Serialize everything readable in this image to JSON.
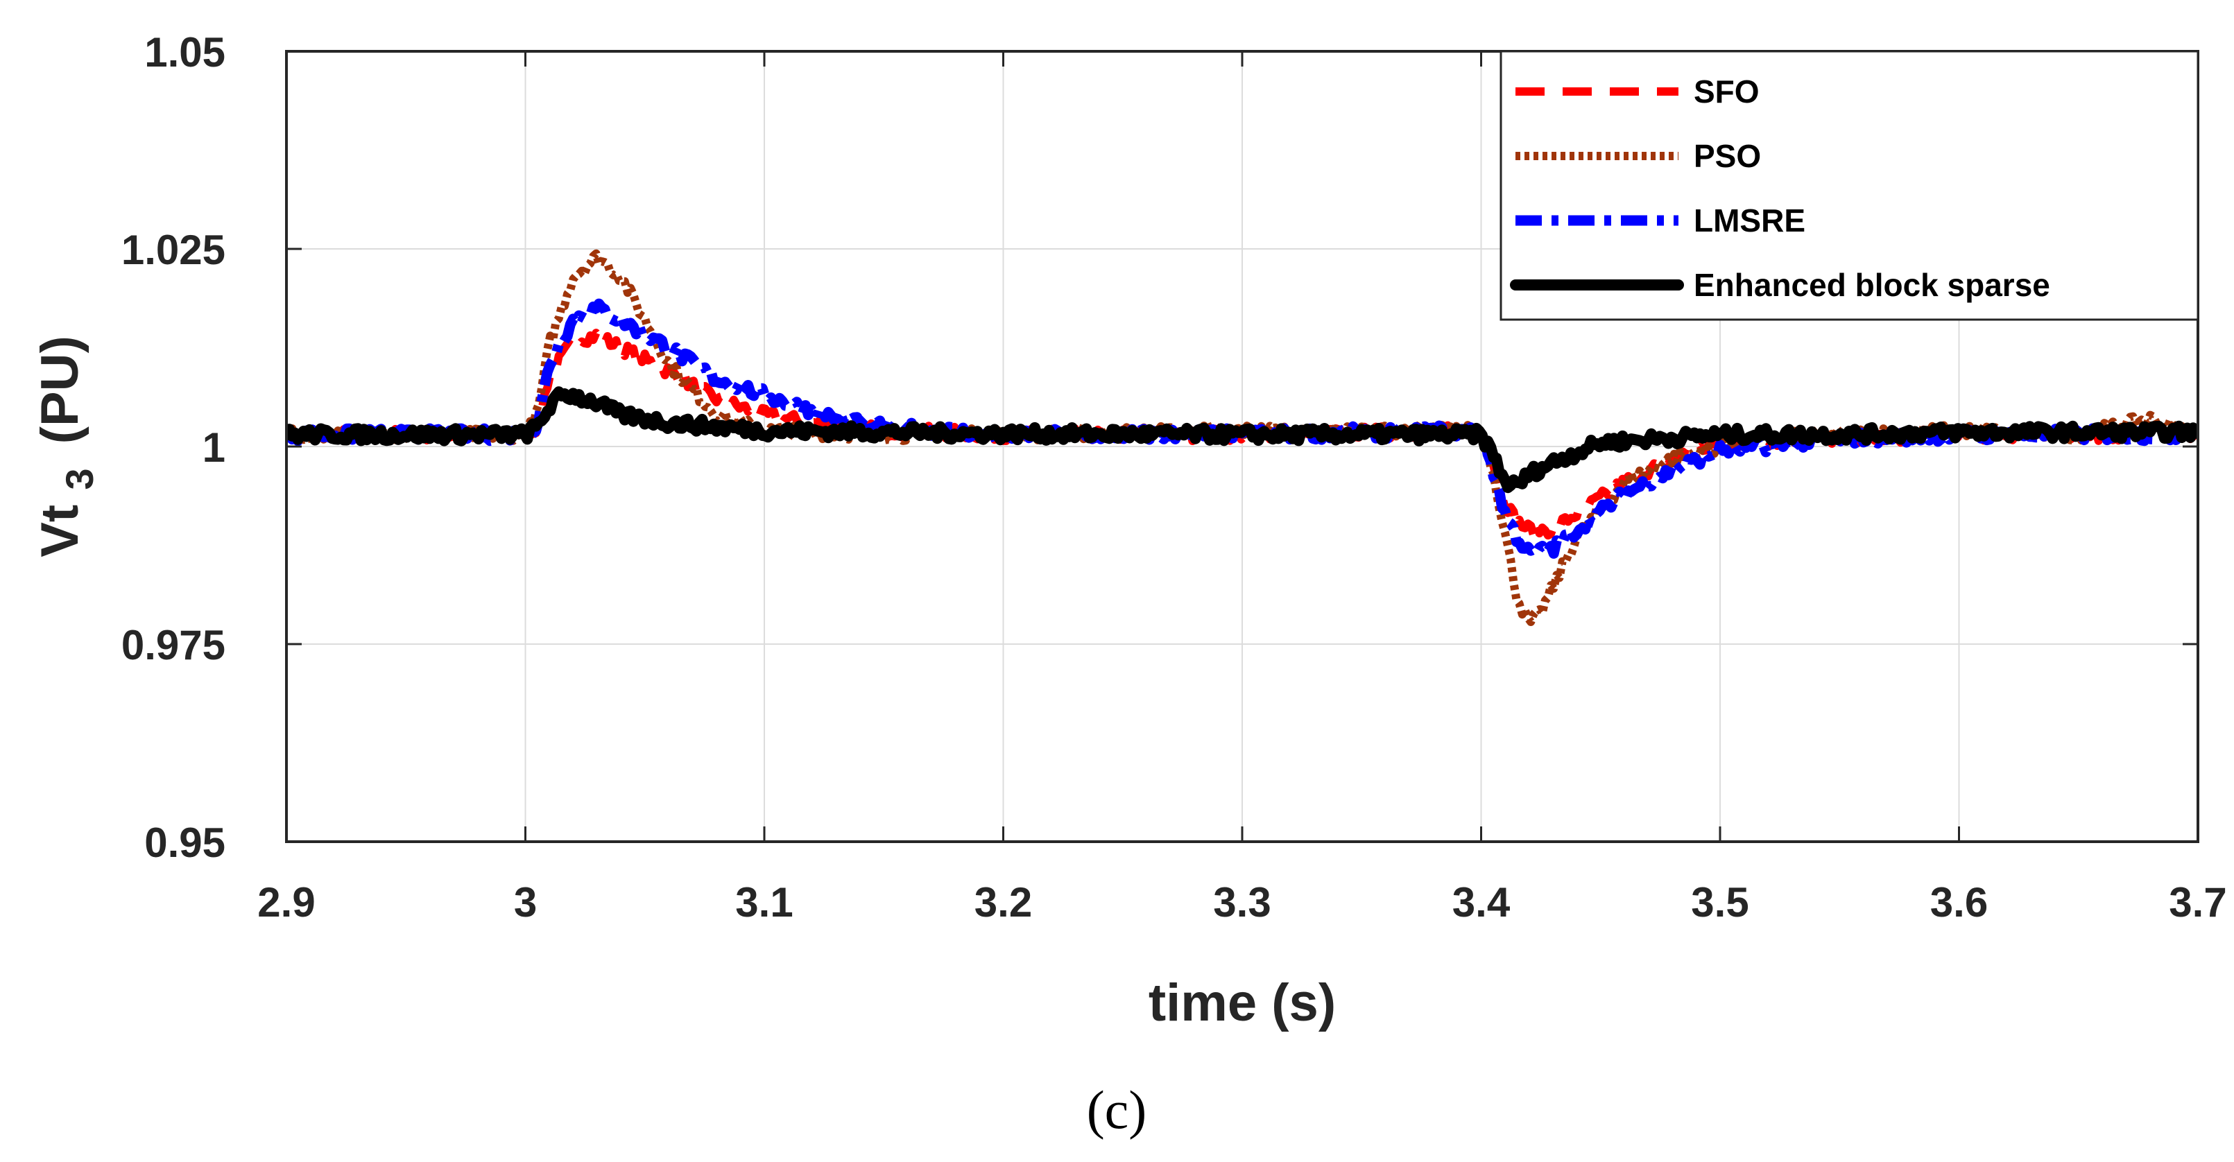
{
  "chart_data": {
    "type": "line",
    "title": "",
    "xlabel": "time (s)",
    "ylabel_main": "Vt",
    "ylabel_sub": "3",
    "ylabel_unit": "(PU)",
    "caption": "(c)",
    "xlim": [
      2.9,
      3.7
    ],
    "ylim": [
      0.95,
      1.05
    ],
    "xticks": [
      2.9,
      3.0,
      3.1,
      3.2,
      3.3,
      3.4,
      3.5,
      3.6,
      3.7
    ],
    "xtick_labels": [
      "2.9",
      "3",
      "3.1",
      "3.2",
      "3.3",
      "3.4",
      "3.5",
      "3.6",
      "3.7"
    ],
    "yticks": [
      0.95,
      0.975,
      1.0,
      1.025,
      1.05
    ],
    "ytick_labels": [
      "0.95",
      "0.975",
      "1",
      "1.025",
      "1.05"
    ],
    "grid": true,
    "legend_position": "top-right",
    "series": [
      {
        "name": "SFO",
        "color": "#ff0000",
        "style": "dashed",
        "x": [
          2.9,
          3.0,
          3.005,
          3.01,
          3.02,
          3.03,
          3.04,
          3.06,
          3.08,
          3.1,
          3.12,
          3.15,
          3.2,
          3.3,
          3.4,
          3.405,
          3.41,
          3.415,
          3.42,
          3.43,
          3.44,
          3.46,
          3.48,
          3.5,
          3.55,
          3.6,
          3.7
        ],
        "y": [
          1.0015,
          1.0015,
          1.0025,
          1.009,
          1.0135,
          1.014,
          1.0125,
          1.0095,
          1.006,
          1.004,
          1.003,
          1.002,
          1.0015,
          1.0015,
          1.002,
          0.998,
          0.993,
          0.9905,
          0.9895,
          0.9895,
          0.9915,
          0.9955,
          0.9985,
          1.0005,
          1.001,
          1.0015,
          1.0015
        ]
      },
      {
        "name": "PSO",
        "color": "#a0350a",
        "style": "dotted",
        "x": [
          2.9,
          3.0,
          3.005,
          3.01,
          3.02,
          3.03,
          3.04,
          3.06,
          3.08,
          3.1,
          3.15,
          3.2,
          3.3,
          3.4,
          3.405,
          3.41,
          3.415,
          3.42,
          3.425,
          3.44,
          3.46,
          3.48,
          3.5,
          3.52,
          3.55,
          3.6,
          3.65,
          3.68,
          3.7
        ],
        "y": [
          1.0015,
          1.0015,
          1.004,
          1.013,
          1.0215,
          1.024,
          1.0215,
          1.0105,
          1.004,
          1.002,
          1.0015,
          1.0015,
          1.002,
          1.002,
          0.997,
          0.989,
          0.981,
          0.9775,
          0.979,
          0.9885,
          0.9955,
          0.9985,
          1.0,
          1.001,
          1.0015,
          1.002,
          1.0015,
          1.0035,
          1.0015
        ]
      },
      {
        "name": "LMSRE",
        "color": "#0000ff",
        "style": "dashdot",
        "x": [
          2.9,
          3.0,
          3.005,
          3.01,
          3.02,
          3.03,
          3.04,
          3.06,
          3.08,
          3.1,
          3.12,
          3.15,
          3.2,
          3.3,
          3.4,
          3.405,
          3.41,
          3.415,
          3.42,
          3.43,
          3.44,
          3.46,
          3.48,
          3.5,
          3.55,
          3.6,
          3.7
        ],
        "y": [
          1.0015,
          1.0015,
          1.0025,
          1.0105,
          1.016,
          1.0175,
          1.016,
          1.0125,
          1.0085,
          1.0065,
          1.0045,
          1.0025,
          1.0015,
          1.0015,
          1.002,
          0.997,
          0.9915,
          0.9885,
          0.9865,
          0.987,
          0.9895,
          0.994,
          0.997,
          0.9995,
          1.001,
          1.0015,
          1.0015
        ]
      },
      {
        "name": "Enhanced block sparse",
        "color": "#000000",
        "style": "solid",
        "x": [
          2.9,
          3.0,
          3.005,
          3.01,
          3.015,
          3.02,
          3.03,
          3.04,
          3.06,
          3.08,
          3.1,
          3.15,
          3.2,
          3.3,
          3.4,
          3.405,
          3.41,
          3.415,
          3.42,
          3.43,
          3.45,
          3.5,
          3.55,
          3.6,
          3.7
        ],
        "y": [
          1.0015,
          1.0015,
          1.0025,
          1.005,
          1.0065,
          1.0065,
          1.0055,
          1.004,
          1.003,
          1.0025,
          1.002,
          1.0018,
          1.0016,
          1.0015,
          1.0015,
          0.999,
          0.9955,
          0.995,
          0.9965,
          0.998,
          1.0005,
          1.0015,
          1.0015,
          1.0018,
          1.0018
        ]
      }
    ]
  }
}
